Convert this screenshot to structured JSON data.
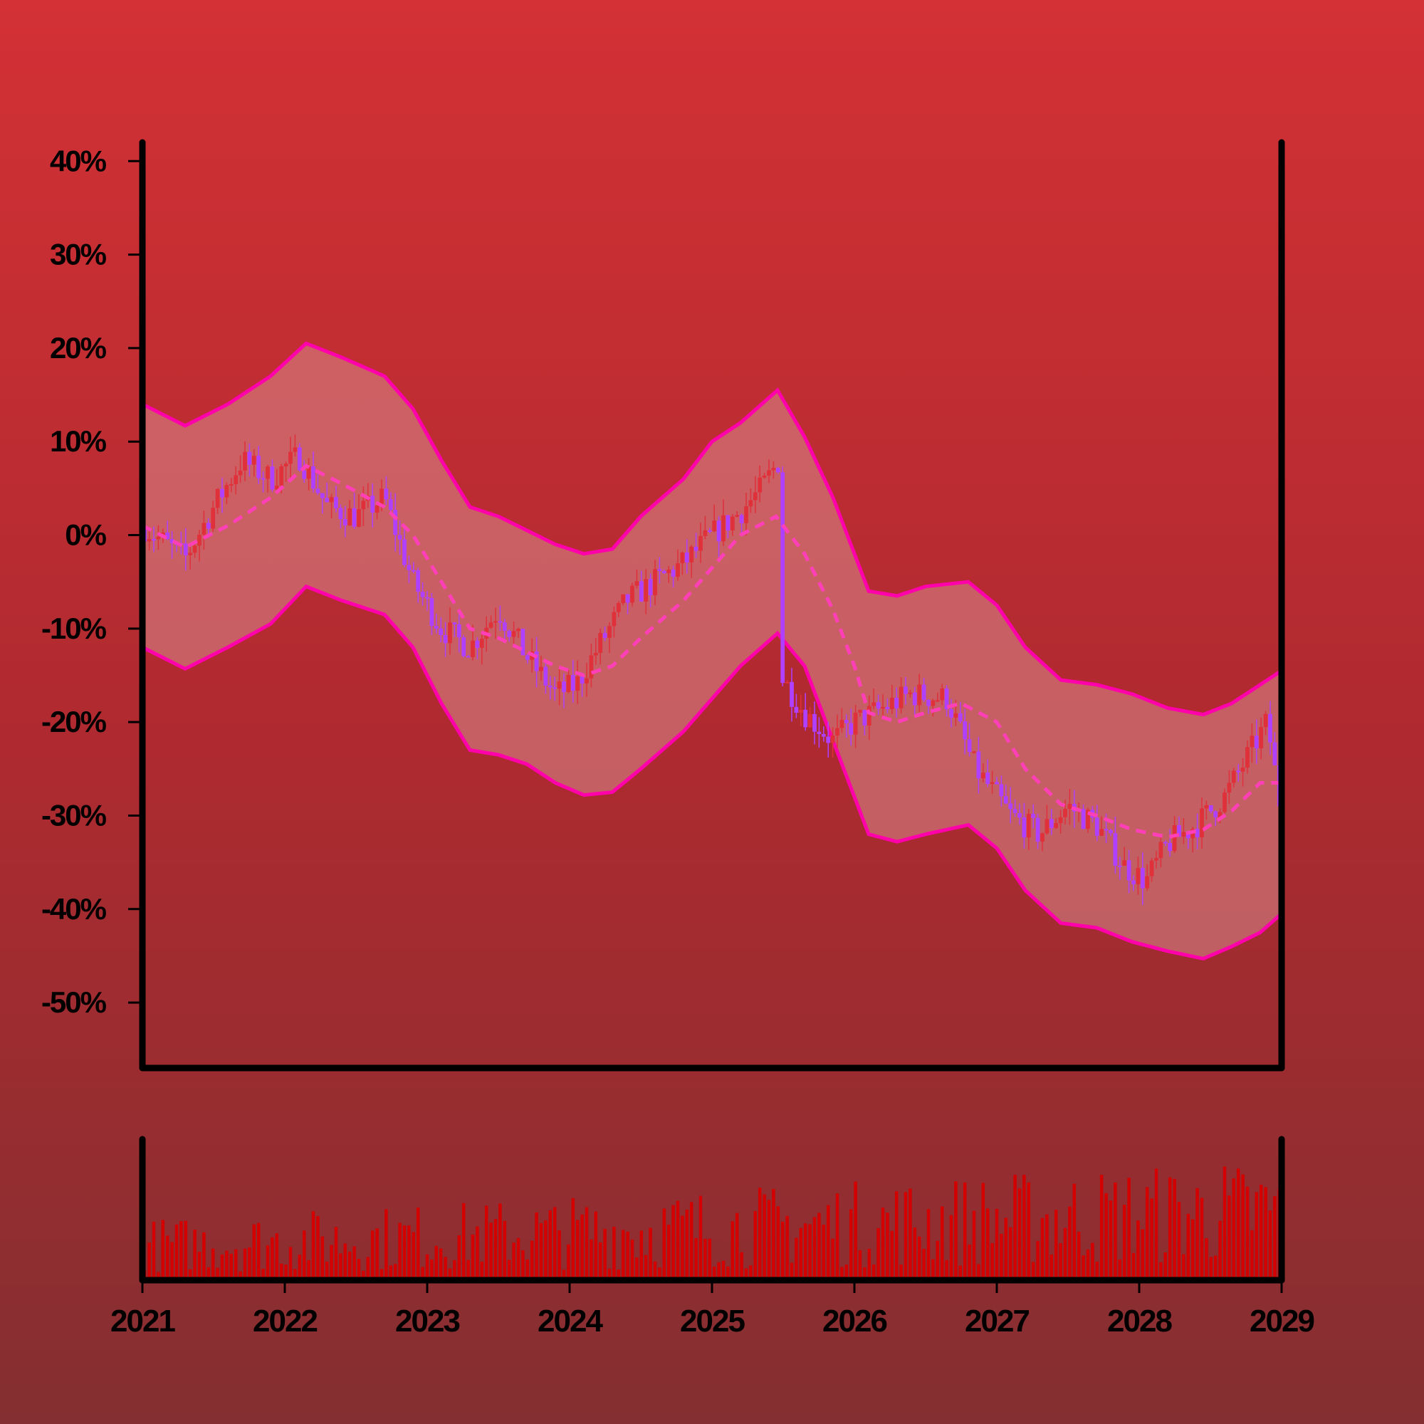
{
  "colors": {
    "band_fill": "#d88a8e",
    "band_line": "#ff00aa",
    "ma_line": "#ff3fb8",
    "candle_up": "#e0303a",
    "candle_down": "#b040ff",
    "volume": "#d40000",
    "axis": "#000000"
  },
  "chart_data": {
    "type": "candlestick",
    "title": "",
    "xlabel": "",
    "ylabel": "",
    "y_unit": "%",
    "ylim": [
      -57,
      42
    ],
    "xlim": [
      2021,
      2029
    ],
    "y_ticks": [
      40,
      30,
      20,
      10,
      0,
      -10,
      -20,
      -30,
      -40,
      -50
    ],
    "y_tick_labels": [
      "40%",
      "30%",
      "20%",
      "10%",
      "0%",
      "-10%",
      "-20%",
      "-30%",
      "-40%",
      "-50%"
    ],
    "x_ticks": [
      2021,
      2022,
      2023,
      2024,
      2025,
      2026,
      2027,
      2028,
      2029
    ],
    "x_tick_labels": [
      "2021",
      "2022",
      "2023",
      "2024",
      "2025",
      "2026",
      "2027",
      "2028",
      "2029"
    ],
    "grid": false,
    "price_path": {
      "x": [
        2021.0,
        2021.3,
        2021.5,
        2021.7,
        2021.9,
        2022.1,
        2022.3,
        2022.5,
        2022.7,
        2022.9,
        2023.1,
        2023.3,
        2023.5,
        2023.7,
        2023.9,
        2024.05,
        2024.2,
        2024.4,
        2024.6,
        2024.8,
        2025.0,
        2025.2,
        2025.35,
        2025.47,
        2025.48,
        2025.65,
        2025.85,
        2026.0,
        2026.2,
        2026.4,
        2026.65,
        2026.85,
        2027.1,
        2027.3,
        2027.5,
        2027.7,
        2027.9,
        2028.05,
        2028.2,
        2028.4,
        2028.6,
        2028.75,
        2028.9,
        2029.0
      ],
      "y": [
        1.0,
        -2.5,
        3.0,
        8.0,
        6.0,
        8.5,
        3.0,
        2.0,
        4.0,
        -5.0,
        -10.0,
        -12.0,
        -8.0,
        -13.0,
        -17.0,
        -16.0,
        -12.0,
        -7.0,
        -5.0,
        -3.0,
        0.0,
        2.5,
        5.0,
        8.0,
        -15.0,
        -19.0,
        -22.0,
        -20.0,
        -18.5,
        -17.0,
        -17.5,
        -25.0,
        -30.0,
        -32.0,
        -29.0,
        -31.0,
        -35.5,
        -37.0,
        -33.0,
        -31.0,
        -28.0,
        -24.0,
        -20.0,
        -30.0
      ]
    },
    "moving_average": {
      "style": "dashed",
      "x": [
        2021.0,
        2021.3,
        2021.6,
        2021.9,
        2022.15,
        2022.4,
        2022.7,
        2022.9,
        2023.1,
        2023.3,
        2023.5,
        2023.7,
        2023.9,
        2024.1,
        2024.3,
        2024.5,
        2024.8,
        2025.0,
        2025.2,
        2025.45,
        2025.65,
        2025.85,
        2026.0,
        2026.1,
        2026.3,
        2026.5,
        2026.75,
        2027.0,
        2027.2,
        2027.45,
        2027.7,
        2027.95,
        2028.2,
        2028.45,
        2028.65,
        2028.85,
        2029.0
      ],
      "y": [
        1.0,
        -1.3,
        1.0,
        4.0,
        7.4,
        5.5,
        3.0,
        0.0,
        -5.0,
        -10.0,
        -11.0,
        -12.5,
        -14.0,
        -15.0,
        -14.0,
        -11.0,
        -7.0,
        -3.5,
        0.0,
        2.0,
        -2.0,
        -8.0,
        -14.0,
        -19.0,
        -20.0,
        -19.0,
        -18.0,
        -20.0,
        -25.0,
        -28.8,
        -30.0,
        -31.5,
        -32.3,
        -31.5,
        -29.5,
        -26.5,
        -26.5
      ]
    },
    "upper_band": {
      "x": [
        2021.0,
        2021.3,
        2021.6,
        2021.9,
        2022.15,
        2022.4,
        2022.7,
        2022.9,
        2023.1,
        2023.3,
        2023.5,
        2023.7,
        2023.9,
        2024.1,
        2024.3,
        2024.5,
        2024.8,
        2025.0,
        2025.2,
        2025.46,
        2025.65,
        2025.85,
        2026.1,
        2026.3,
        2026.5,
        2026.8,
        2027.0,
        2027.2,
        2027.45,
        2027.7,
        2027.95,
        2028.2,
        2028.45,
        2028.65,
        2028.85,
        2029.0
      ],
      "y": [
        14.0,
        11.7,
        14.0,
        17.0,
        20.5,
        19.0,
        17.0,
        13.5,
        8.0,
        3.0,
        2.0,
        0.5,
        -1.0,
        -2.0,
        -1.5,
        2.0,
        6.0,
        10.0,
        12.0,
        15.5,
        10.5,
        4.0,
        -6.0,
        -6.5,
        -5.5,
        -5.0,
        -7.5,
        -12.0,
        -15.5,
        -16.0,
        -17.0,
        -18.5,
        -19.2,
        -18.0,
        -16.0,
        -14.5
      ]
    },
    "lower_band": {
      "x": [
        2021.0,
        2021.3,
        2021.6,
        2021.9,
        2022.15,
        2022.4,
        2022.7,
        2022.9,
        2023.1,
        2023.3,
        2023.5,
        2023.7,
        2023.9,
        2024.1,
        2024.3,
        2024.5,
        2024.8,
        2025.0,
        2025.2,
        2025.46,
        2025.65,
        2025.85,
        2026.1,
        2026.3,
        2026.5,
        2026.8,
        2027.0,
        2027.2,
        2027.45,
        2027.7,
        2027.95,
        2028.2,
        2028.45,
        2028.65,
        2028.85,
        2029.0
      ],
      "y": [
        -12.0,
        -14.3,
        -12.0,
        -9.5,
        -5.5,
        -7.0,
        -8.5,
        -12.0,
        -18.0,
        -23.0,
        -23.5,
        -24.5,
        -26.5,
        -27.8,
        -27.5,
        -25.0,
        -21.0,
        -17.5,
        -14.0,
        -10.5,
        -14.0,
        -22.0,
        -32.0,
        -32.8,
        -32.0,
        -31.0,
        -33.5,
        -38.0,
        -41.5,
        -42.0,
        -43.5,
        -44.5,
        -45.3,
        -44.0,
        -42.5,
        -40.5
      ]
    },
    "volume": {
      "series_count": 250,
      "relative_max": 1.0
    }
  }
}
